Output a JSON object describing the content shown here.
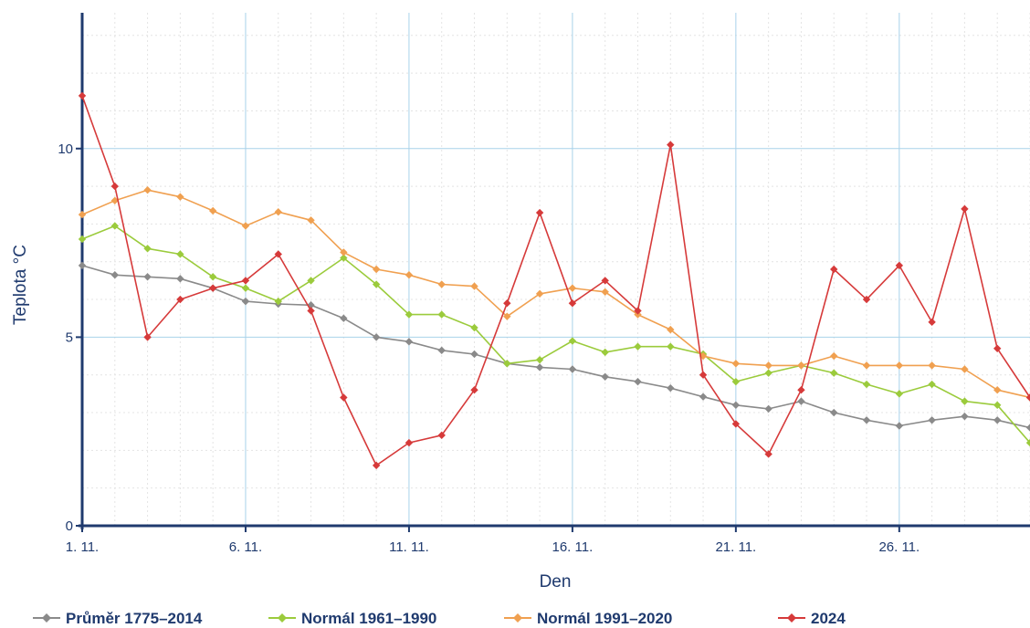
{
  "chart_data": {
    "type": "line",
    "xlabel": "Den",
    "ylabel": "Teplota  °C",
    "x": [
      1,
      2,
      3,
      4,
      5,
      6,
      7,
      8,
      9,
      10,
      11,
      12,
      13,
      14,
      15,
      16,
      17,
      18,
      19,
      20,
      21,
      22,
      23,
      24,
      25,
      26,
      27,
      28,
      29,
      30
    ],
    "x_tick_values": [
      1,
      6,
      11,
      16,
      21,
      26
    ],
    "x_tick_labels": [
      "1. 11.",
      "6. 11.",
      "11. 11.",
      "16. 11.",
      "21. 11.",
      "26. 11."
    ],
    "y_ticks": [
      0,
      5,
      10
    ],
    "xlim": [
      1,
      30
    ],
    "ylim": [
      0,
      13.6
    ],
    "grid": true,
    "legend_position": "bottom",
    "series": [
      {
        "name": "Průměr 1775–2014",
        "color": "#8a8a8a",
        "values": [
          6.9,
          6.65,
          6.6,
          6.55,
          6.3,
          5.95,
          5.88,
          5.85,
          5.5,
          5.0,
          4.88,
          4.65,
          4.55,
          4.3,
          4.2,
          4.15,
          3.95,
          3.82,
          3.65,
          3.42,
          3.2,
          3.1,
          3.3,
          3.0,
          2.8,
          2.65,
          2.8,
          2.9,
          2.8,
          2.6
        ]
      },
      {
        "name": "Normál 1961–1990",
        "color": "#9bcb3c",
        "values": [
          7.6,
          7.95,
          7.35,
          7.2,
          6.6,
          6.3,
          5.95,
          6.5,
          7.1,
          6.4,
          5.6,
          5.6,
          5.25,
          4.3,
          4.4,
          4.9,
          4.6,
          4.75,
          4.75,
          4.55,
          3.82,
          4.05,
          4.25,
          4.05,
          3.75,
          3.5,
          3.75,
          3.3,
          3.2,
          2.2
        ]
      },
      {
        "name": "Normál 1991–2020",
        "color": "#f0a050",
        "values": [
          8.25,
          8.62,
          8.9,
          8.72,
          8.35,
          7.95,
          8.32,
          8.1,
          7.25,
          6.8,
          6.65,
          6.4,
          6.35,
          5.55,
          6.15,
          6.3,
          6.2,
          5.6,
          5.2,
          4.5,
          4.3,
          4.25,
          4.25,
          4.5,
          4.25,
          4.25,
          4.25,
          4.15,
          3.6,
          3.4
        ]
      },
      {
        "name": "2024",
        "color": "#d63a3a",
        "values": [
          11.4,
          9.0,
          5.0,
          6.0,
          6.3,
          6.5,
          7.2,
          5.7,
          3.4,
          1.6,
          2.2,
          2.4,
          3.6,
          5.9,
          8.3,
          5.9,
          6.5,
          5.7,
          10.1,
          4.0,
          2.7,
          1.9,
          3.6,
          6.8,
          6.0,
          6.9,
          5.4,
          8.4,
          4.7,
          3.4
        ]
      }
    ]
  }
}
